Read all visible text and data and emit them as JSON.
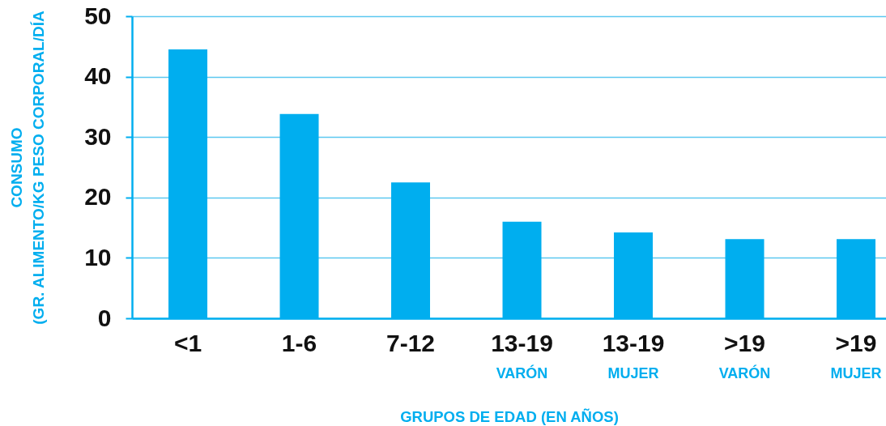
{
  "chart_data": {
    "type": "bar",
    "xlabel": "GRUPOS DE EDAD (EN AÑOS)",
    "ylabel": "CONSUMO\n(GR. ALIMENTO/KG PESO CORPORAL/DÍA",
    "categories": [
      "<1",
      "1-6",
      "7-12",
      "13-19\nVARÓN",
      "13-19\nMUJER",
      ">19\nVARÓN",
      ">19\nMUJER"
    ],
    "values": [
      44.5,
      33.8,
      22.5,
      16,
      14.2,
      13.1,
      13.1
    ],
    "color": "#00aeef",
    "ylim": [
      0,
      50
    ],
    "yticks": [
      0,
      10,
      20,
      30,
      40,
      50
    ],
    "grid": "y"
  }
}
